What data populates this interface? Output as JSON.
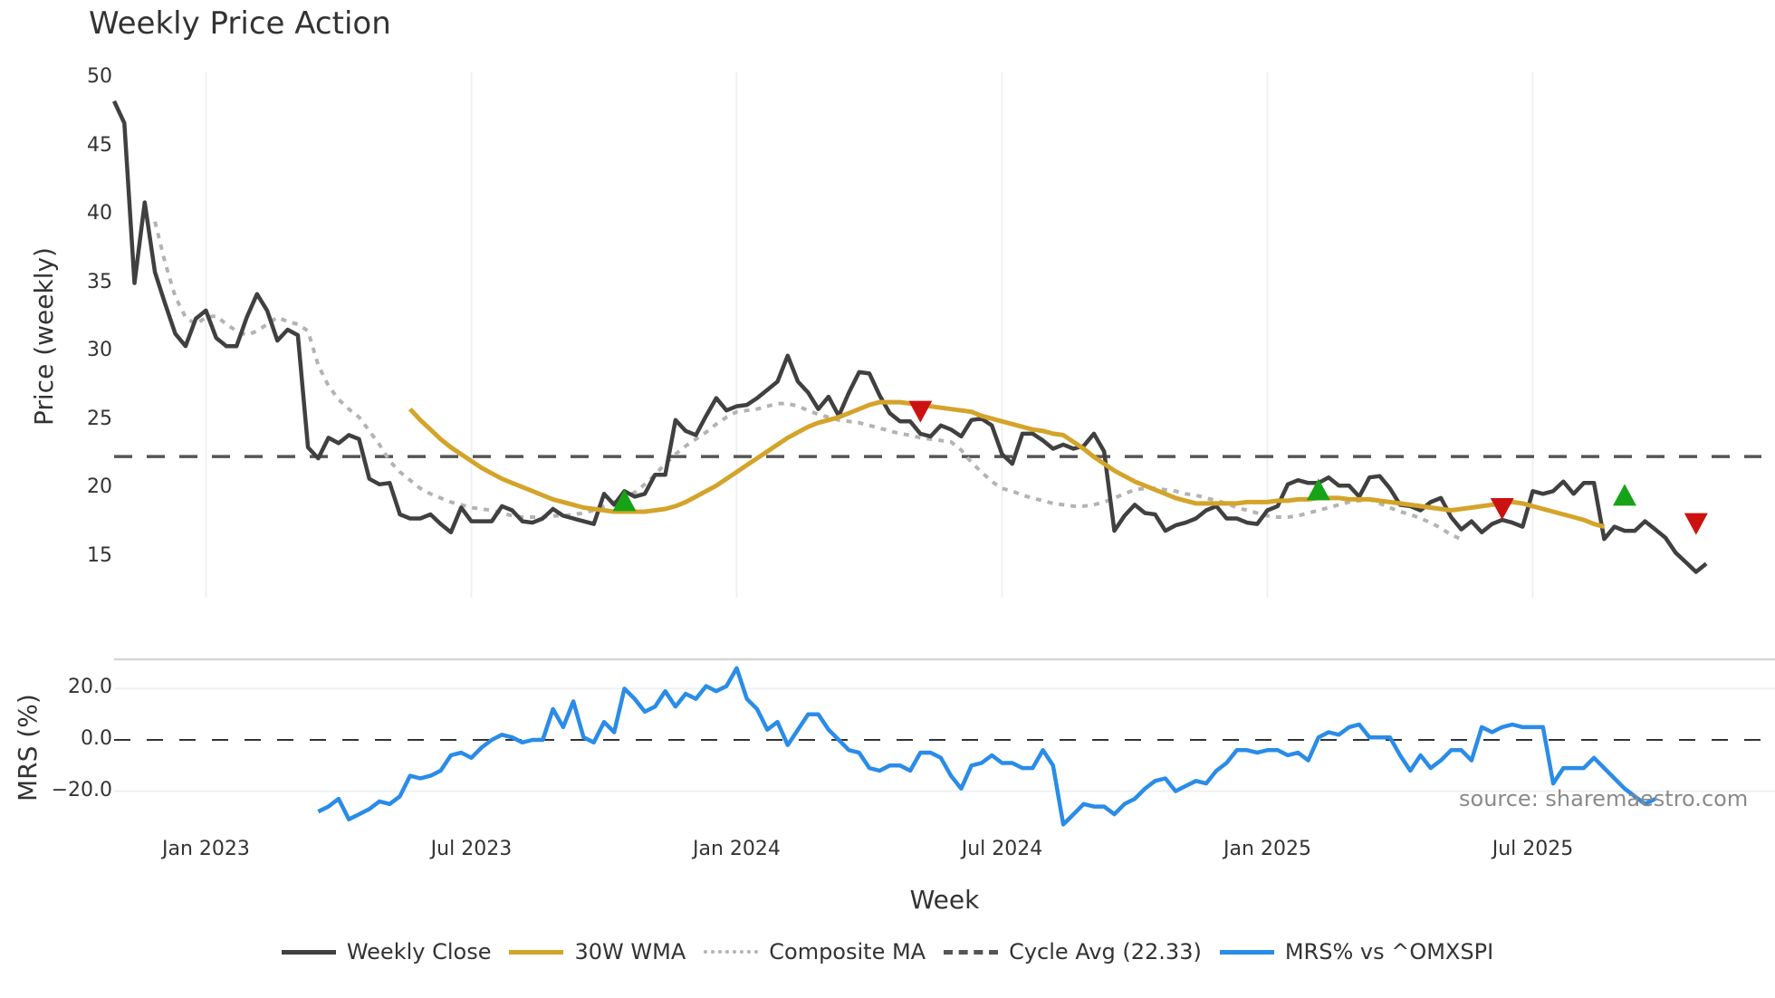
{
  "title": "Weekly Price Action",
  "source_note": "source: sharemaestro.com",
  "colors": {
    "weekly_close": "#404040",
    "wma": "#d4a42a",
    "composite": "#b3b3b3",
    "cycle_avg": "#555555",
    "mrs": "#2a8ce8",
    "buy": "#17a317",
    "sell": "#cc1111",
    "grid": "#eef0f3"
  },
  "legend": [
    {
      "key": "weekly_close",
      "label": "Weekly Close",
      "style": "solid"
    },
    {
      "key": "wma",
      "label": "30W WMA",
      "style": "solid"
    },
    {
      "key": "composite",
      "label": "Composite MA",
      "style": "dotted"
    },
    {
      "key": "cycle_avg",
      "label": "Cycle Avg (22.33)",
      "style": "dashed"
    },
    {
      "key": "mrs",
      "label": "MRS% vs ^OMXSPI",
      "style": "solid"
    }
  ],
  "chart_data": [
    {
      "type": "line",
      "title": "Weekly Price Action",
      "xlabel": "Week",
      "ylabel": "Price (weekly)",
      "ylim": [
        12,
        50
      ],
      "yticks": [
        15,
        20,
        25,
        30,
        35,
        40,
        45,
        50
      ],
      "xticks": [
        "Jan 2023",
        "Jul 2023",
        "Jan 2024",
        "Jul 2024",
        "Jan 2025",
        "Jul 2025"
      ],
      "xtick_week_index": [
        9,
        35,
        61,
        87,
        113,
        139
      ],
      "grid": true,
      "cycle_avg": 22.33,
      "series": [
        {
          "name": "Weekly Close",
          "values": [
            48.3,
            46.7,
            35.0,
            40.9,
            35.8,
            33.5,
            31.3,
            30.4,
            32.4,
            33.0,
            31.0,
            30.4,
            30.4,
            32.5,
            34.2,
            33.0,
            30.8,
            31.6,
            31.2,
            23.0,
            22.2,
            23.7,
            23.3,
            23.9,
            23.6,
            20.7,
            20.3,
            20.4,
            18.1,
            17.8,
            17.8,
            18.1,
            17.4,
            16.8,
            18.6,
            17.6,
            17.6,
            17.6,
            18.7,
            18.4,
            17.6,
            17.5,
            17.8,
            18.5,
            18.0,
            17.8,
            17.6,
            17.4,
            19.6,
            18.8,
            19.8,
            19.4,
            19.6,
            21.0,
            21.0,
            25.0,
            24.2,
            23.9,
            25.3,
            26.6,
            25.7,
            26.0,
            26.1,
            26.6,
            27.2,
            27.8,
            29.7,
            27.8,
            27.0,
            25.8,
            26.7,
            25.3,
            27.0,
            28.5,
            28.4,
            26.8,
            25.5,
            24.9,
            24.9,
            24.0,
            23.8,
            24.6,
            24.3,
            23.8,
            25.0,
            25.1,
            24.6,
            22.5,
            21.8,
            24.0,
            24.0,
            23.5,
            22.9,
            23.2,
            22.9,
            23.1,
            24.0,
            22.7,
            16.9,
            18.0,
            18.8,
            18.2,
            18.1,
            16.9,
            17.3,
            17.5,
            17.8,
            18.4,
            18.7,
            17.8,
            17.8,
            17.5,
            17.4,
            18.4,
            18.7,
            20.3,
            20.6,
            20.4,
            20.4,
            20.8,
            20.2,
            20.2,
            19.4,
            20.8,
            20.9,
            20.0,
            18.8,
            18.7,
            18.4,
            19.0,
            19.3,
            17.9,
            17.0,
            17.6,
            16.8,
            17.4,
            17.7,
            17.5,
            17.2,
            19.8,
            19.6,
            19.8,
            20.5,
            19.6,
            20.4,
            20.4,
            16.3,
            17.2,
            16.9,
            16.9,
            17.6,
            17.0,
            16.4,
            15.3,
            14.6,
            13.9,
            14.5
          ]
        },
        {
          "name": "30W WMA",
          "start_index": 29,
          "values": [
            25.8,
            25.0,
            24.3,
            23.6,
            23.0,
            22.5,
            22.0,
            21.5,
            21.1,
            20.7,
            20.4,
            20.1,
            19.8,
            19.5,
            19.2,
            19.0,
            18.8,
            18.6,
            18.5,
            18.4,
            18.3,
            18.3,
            18.3,
            18.3,
            18.4,
            18.5,
            18.7,
            19.0,
            19.4,
            19.8,
            20.2,
            20.7,
            21.2,
            21.7,
            22.2,
            22.7,
            23.2,
            23.7,
            24.1,
            24.5,
            24.8,
            25.0,
            25.2,
            25.5,
            25.8,
            26.1,
            26.3,
            26.3,
            26.3,
            26.2,
            26.1,
            26.0,
            25.9,
            25.8,
            25.7,
            25.6,
            25.3,
            25.1,
            24.9,
            24.7,
            24.5,
            24.3,
            24.2,
            24.0,
            23.9,
            23.4,
            22.9,
            22.3,
            21.8,
            21.3,
            20.9,
            20.5,
            20.2,
            19.9,
            19.6,
            19.3,
            19.1,
            18.9,
            18.9,
            18.9,
            18.9,
            18.9,
            19.0,
            19.0,
            19.0,
            19.1,
            19.1,
            19.2,
            19.2,
            19.3,
            19.3,
            19.3,
            19.2,
            19.2,
            19.2,
            19.1,
            19.0,
            18.9,
            18.8,
            18.7,
            18.6,
            18.5,
            18.4,
            18.5,
            18.6,
            18.7,
            18.8,
            18.9,
            19.0,
            18.9,
            18.7,
            18.5,
            18.3,
            18.1,
            17.9,
            17.7,
            17.4,
            17.2
          ]
        },
        {
          "name": "Composite MA",
          "start_index": 4,
          "values": [
            39.5,
            36.5,
            34.0,
            32.5,
            32.0,
            32.5,
            32.6,
            32.0,
            31.5,
            31.2,
            31.5,
            32.0,
            32.5,
            32.2,
            32.0,
            31.5,
            29.0,
            27.5,
            26.5,
            25.8,
            25.2,
            24.2,
            23.2,
            22.0,
            21.2,
            20.6,
            20.0,
            19.6,
            19.3,
            19.0,
            18.8,
            18.6,
            18.5,
            18.4,
            18.2,
            18.0,
            17.9,
            17.9,
            17.9,
            18.0,
            18.0,
            18.1,
            18.2,
            18.4,
            18.7,
            19.0,
            19.3,
            19.7,
            20.3,
            21.0,
            21.8,
            22.5,
            23.1,
            23.6,
            24.1,
            24.7,
            25.2,
            25.6,
            25.7,
            25.8,
            26.0,
            26.2,
            26.2,
            26.0,
            25.7,
            25.4,
            25.2,
            25.0,
            24.9,
            24.8,
            24.6,
            24.4,
            24.2,
            24.0,
            23.9,
            23.7,
            23.6,
            23.5,
            23.4,
            22.8,
            21.9,
            21.2,
            20.5,
            20.0,
            19.8,
            19.5,
            19.3,
            19.1,
            18.9,
            18.8,
            18.7,
            18.7,
            18.8,
            19.0,
            19.3,
            19.6,
            19.9,
            20.0,
            20.0,
            19.9,
            19.8,
            19.6,
            19.5,
            19.3,
            19.1,
            18.9,
            18.6,
            18.4,
            18.2,
            18.0,
            17.9,
            17.9,
            18.0,
            18.2,
            18.4,
            18.6,
            18.8,
            19.0,
            19.1,
            19.2,
            18.9,
            18.6,
            18.3,
            18.1,
            17.8,
            17.5,
            17.1,
            16.6,
            16.3
          ]
        }
      ],
      "signals": [
        {
          "type": "buy",
          "index": 50,
          "value": 19.0
        },
        {
          "type": "sell",
          "index": 79,
          "value": 25.6
        },
        {
          "type": "buy",
          "index": 118,
          "value": 19.8
        },
        {
          "type": "sell",
          "index": 136,
          "value": 18.5
        },
        {
          "type": "buy",
          "index": 148,
          "value": 19.4
        },
        {
          "type": "sell",
          "index": 155,
          "value": 17.4
        }
      ]
    },
    {
      "type": "line",
      "title": "",
      "xlabel": "Week",
      "ylabel": "MRS (%)",
      "ylim": [
        -36,
        33
      ],
      "yticks": [
        "20.0",
        "0.0",
        "−20.0"
      ],
      "ytick_values": [
        20,
        0,
        -20
      ],
      "zero_line": true,
      "series": [
        {
          "name": "MRS% vs ^OMXSPI",
          "start_index": 20,
          "values": [
            -28,
            -26,
            -23,
            -31,
            -29,
            -27,
            -24,
            -25,
            -22,
            -14,
            -15,
            -14,
            -12,
            -6,
            -5,
            -7,
            -3,
            0,
            2,
            1,
            -1,
            0,
            0,
            12,
            5,
            15,
            1,
            -1,
            7,
            3,
            20,
            16,
            11,
            13,
            19,
            13,
            18,
            16,
            21,
            19,
            21,
            28,
            16,
            12,
            4,
            7,
            -2,
            4,
            10,
            10,
            4,
            0,
            -4,
            -5,
            -11,
            -12,
            -10,
            -10,
            -12,
            -5,
            -5,
            -7,
            -14,
            -19,
            -10,
            -9,
            -6,
            -9,
            -9,
            -11,
            -11,
            -4,
            -10,
            -33,
            -29,
            -25,
            -26,
            -26,
            -29,
            -25,
            -23,
            -19,
            -16,
            -15,
            -20,
            -18,
            -16,
            -17,
            -12,
            -9,
            -4,
            -4,
            -5,
            -4,
            -4,
            -6,
            -5,
            -8,
            1,
            3,
            2,
            5,
            6,
            1,
            1,
            1,
            -6,
            -12,
            -6,
            -11,
            -8,
            -4,
            -4,
            -8,
            5,
            3,
            5,
            6,
            5,
            5,
            5,
            -17,
            -11,
            -11,
            -11,
            -7,
            -11,
            -15,
            -19,
            -22,
            -25,
            -23
          ]
        }
      ]
    }
  ]
}
